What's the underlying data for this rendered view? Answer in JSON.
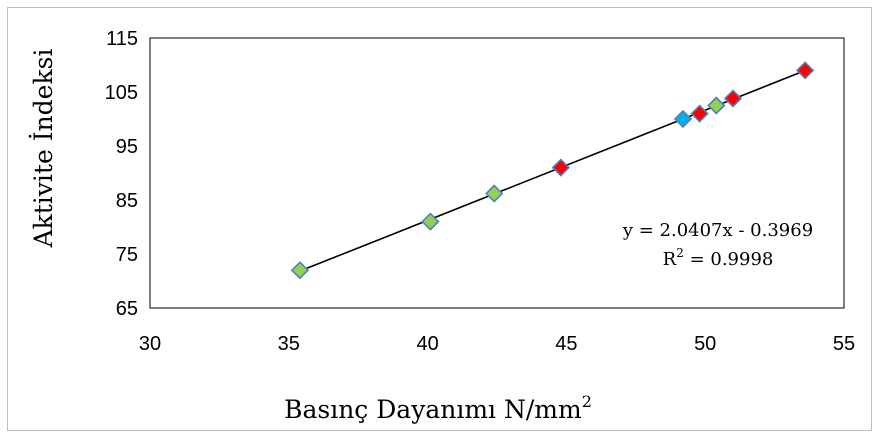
{
  "chart_data": {
    "type": "scatter",
    "xlabel": "Basınç Dayanımı N/mm",
    "xlabel_sup": "2",
    "ylabel": "Aktivite İndeksi",
    "xlim": [
      30,
      55
    ],
    "ylim": [
      65,
      115
    ],
    "x_ticks": [
      "30",
      "35",
      "40",
      "45",
      "50",
      "55"
    ],
    "y_ticks": [
      "65",
      "75",
      "85",
      "95",
      "105",
      "115"
    ],
    "grid": false,
    "series": [
      {
        "color": "#92d050",
        "points": [
          [
            35.4,
            72.0
          ],
          [
            40.1,
            81.0
          ],
          [
            42.4,
            86.2
          ],
          [
            50.4,
            102.5
          ]
        ]
      },
      {
        "color": "#ff0000",
        "points": [
          [
            44.8,
            91.0
          ],
          [
            49.8,
            101.0
          ],
          [
            51.0,
            103.8
          ],
          [
            53.6,
            109.0
          ]
        ]
      },
      {
        "color": "#00b0f0",
        "points": [
          [
            49.2,
            100.0
          ]
        ]
      }
    ],
    "trendline": {
      "slope": 2.0407,
      "intercept": -0.3969,
      "x_range": [
        35.4,
        53.6
      ],
      "equation": "y = 2.0407x - 0.3969",
      "r2_prefix": "R",
      "r2_sup": "2",
      "r2_suffix": " = 0.9998"
    },
    "marker_stroke": "#4f81bd"
  }
}
